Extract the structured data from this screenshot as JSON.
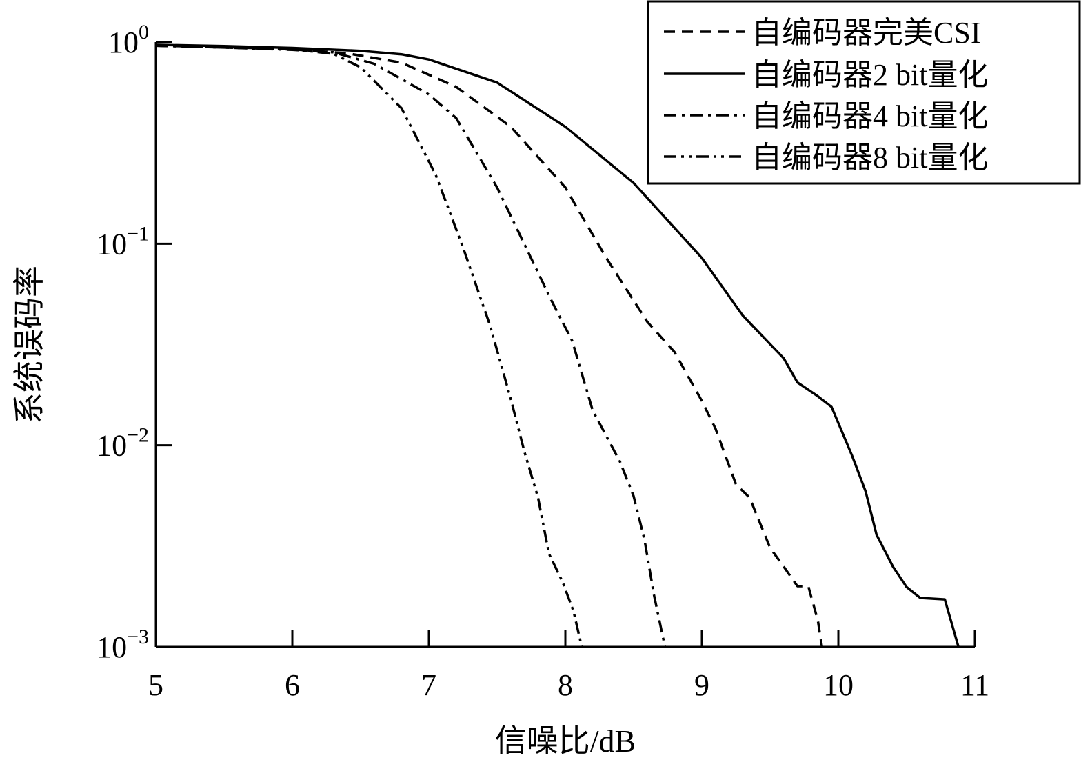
{
  "chart_data": {
    "type": "line",
    "xlabel": "信噪比/dB",
    "ylabel": "系统误码率",
    "xlim": [
      5,
      11
    ],
    "ylim": [
      0.001,
      1
    ],
    "yscale": "log",
    "xticks": [
      "5",
      "6",
      "7",
      "8",
      "9",
      "10",
      "11"
    ],
    "yticks": [
      {
        "base": "10",
        "exp": "0"
      },
      {
        "base": "10",
        "exp": "−1"
      },
      {
        "base": "10",
        "exp": "−2"
      },
      {
        "base": "10",
        "exp": "−3"
      }
    ],
    "grid": false,
    "legend_position": "top-right",
    "series": [
      {
        "name": "自编码器完美CSI",
        "style": "dashed",
        "color": "#000000",
        "points": [
          [
            5.0,
            0.96
          ],
          [
            5.5,
            0.945
          ],
          [
            6.0,
            0.92
          ],
          [
            6.4,
            0.88
          ],
          [
            6.8,
            0.79
          ],
          [
            7.2,
            0.6
          ],
          [
            7.6,
            0.38
          ],
          [
            8.0,
            0.19
          ],
          [
            8.1,
            0.145
          ],
          [
            8.3,
            0.085
          ],
          [
            8.6,
            0.041
          ],
          [
            8.8,
            0.029
          ],
          [
            9.0,
            0.0166
          ],
          [
            9.1,
            0.0121
          ],
          [
            9.25,
            0.0064
          ],
          [
            9.35,
            0.0055
          ],
          [
            9.5,
            0.0031
          ],
          [
            9.6,
            0.0025
          ],
          [
            9.7,
            0.002
          ],
          [
            9.78,
            0.002
          ],
          [
            9.85,
            0.00135
          ],
          [
            9.88,
            0.001
          ]
        ]
      },
      {
        "name": "自编码器2 bit量化",
        "style": "solid",
        "color": "#000000",
        "points": [
          [
            5.0,
            0.97
          ],
          [
            5.5,
            0.955
          ],
          [
            6.0,
            0.935
          ],
          [
            6.5,
            0.905
          ],
          [
            6.8,
            0.87
          ],
          [
            7.0,
            0.82
          ],
          [
            7.5,
            0.63
          ],
          [
            8.0,
            0.38
          ],
          [
            8.5,
            0.2
          ],
          [
            9.0,
            0.085
          ],
          [
            9.3,
            0.044
          ],
          [
            9.6,
            0.027
          ],
          [
            9.7,
            0.0205
          ],
          [
            9.85,
            0.0175
          ],
          [
            9.95,
            0.0155
          ],
          [
            10.1,
            0.0089
          ],
          [
            10.2,
            0.0059
          ],
          [
            10.28,
            0.0036
          ],
          [
            10.4,
            0.0025
          ],
          [
            10.5,
            0.00198
          ],
          [
            10.6,
            0.00175
          ],
          [
            10.78,
            0.00172
          ],
          [
            10.88,
            0.001
          ]
        ]
      },
      {
        "name": "自编码器4 bit量化",
        "style": "dashdot",
        "color": "#000000",
        "points": [
          [
            5.0,
            0.96
          ],
          [
            5.5,
            0.94
          ],
          [
            6.0,
            0.915
          ],
          [
            6.3,
            0.89
          ],
          [
            6.6,
            0.78
          ],
          [
            7.0,
            0.55
          ],
          [
            7.2,
            0.42
          ],
          [
            7.5,
            0.19
          ],
          [
            7.9,
            0.052
          ],
          [
            8.05,
            0.033
          ],
          [
            8.2,
            0.0149
          ],
          [
            8.4,
            0.0083
          ],
          [
            8.5,
            0.0056
          ],
          [
            8.58,
            0.0034
          ],
          [
            8.65,
            0.0018
          ],
          [
            8.73,
            0.001
          ]
        ]
      },
      {
        "name": "自编码器8 bit量化",
        "style": "dashdotdot",
        "color": "#000000",
        "points": [
          [
            5.0,
            0.96
          ],
          [
            5.5,
            0.94
          ],
          [
            6.0,
            0.92
          ],
          [
            6.3,
            0.875
          ],
          [
            6.5,
            0.75
          ],
          [
            6.8,
            0.47
          ],
          [
            7.05,
            0.22
          ],
          [
            7.25,
            0.096
          ],
          [
            7.45,
            0.039
          ],
          [
            7.6,
            0.017
          ],
          [
            7.7,
            0.0093
          ],
          [
            7.8,
            0.0055
          ],
          [
            7.88,
            0.0029
          ],
          [
            7.98,
            0.0021
          ],
          [
            8.06,
            0.0015
          ],
          [
            8.12,
            0.001
          ]
        ]
      }
    ]
  }
}
